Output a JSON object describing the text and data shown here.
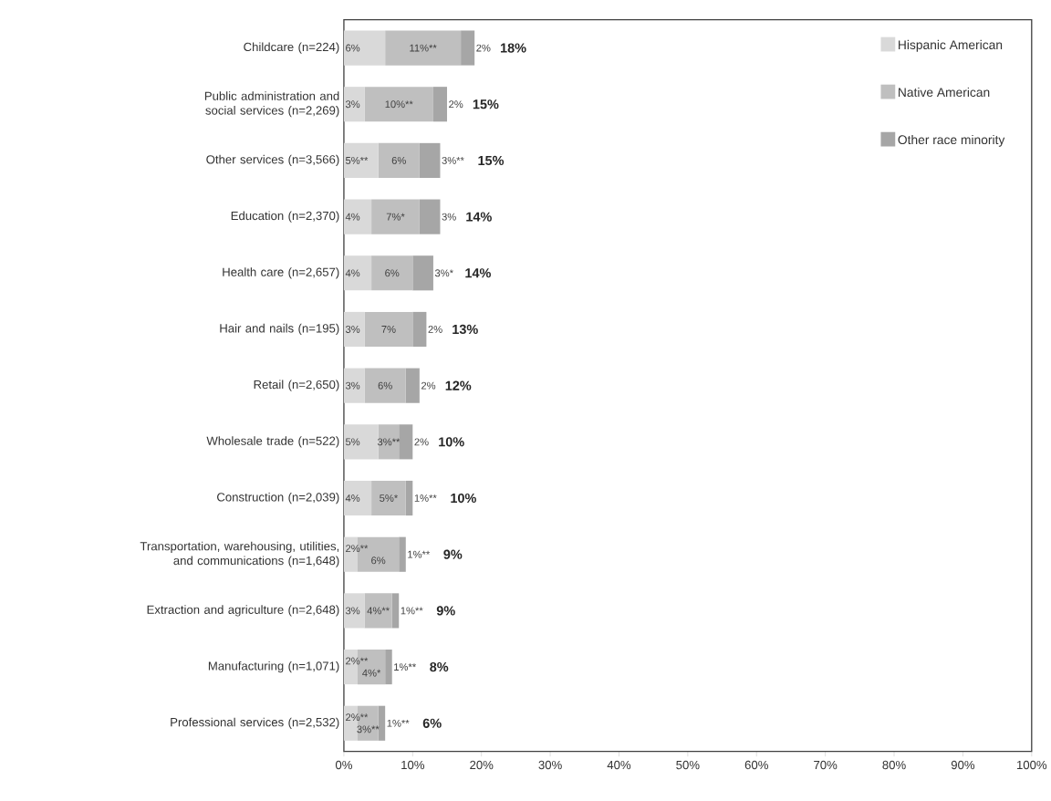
{
  "chart_data": {
    "type": "bar",
    "orientation": "horizontal",
    "stacked": true,
    "categories": [
      "Childcare (n=224)",
      "Public administration and social services (n=2,269)",
      "Other services (n=3,566)",
      "Education (n=2,370)",
      "Health care (n=2,657)",
      "Hair and nails (n=195)",
      "Retail (n=2,650)",
      "Wholesale trade (n=522)",
      "Construction (n=2,039)",
      "Transportation, warehousing, utilities, and communications (n=1,648)",
      "Extraction and agriculture (n=2,648)",
      "Manufacturing (n=1,071)",
      "Professional services (n=2,532)"
    ],
    "series": [
      {
        "name": "Hispanic American",
        "color": "#d9d9d9",
        "values": [
          6,
          3,
          5,
          4,
          4,
          3,
          3,
          5,
          4,
          2,
          3,
          2,
          2
        ],
        "value_labels": [
          "6%",
          "3%",
          "5%**",
          "4%",
          "4%",
          "3%",
          "3%",
          "5%",
          "4%",
          "2%**",
          "3%",
          "2%**",
          "2%**"
        ]
      },
      {
        "name": "Native American",
        "color": "#bfbfbf",
        "values": [
          11,
          10,
          6,
          7,
          6,
          7,
          6,
          3,
          5,
          6,
          4,
          4,
          3
        ],
        "value_labels": [
          "11%**",
          "10%**",
          "6%",
          "7%*",
          "6%",
          "7%",
          "6%",
          "3%**",
          "5%*",
          "6%",
          "4%**",
          "4%*",
          "3%**"
        ]
      },
      {
        "name": "Other race minority",
        "color": "#a6a6a6",
        "values": [
          2,
          2,
          3,
          3,
          3,
          2,
          2,
          2,
          1,
          1,
          1,
          1,
          1
        ],
        "value_labels": [
          "2%",
          "2%",
          "3%**",
          "3%",
          "3%*",
          "2%",
          "2%",
          "2%",
          "1%**",
          "1%**",
          "1%**",
          "1%**",
          "1%**"
        ]
      }
    ],
    "totals": [
      "18%",
      "15%",
      "15%",
      "14%",
      "14%",
      "13%",
      "12%",
      "10%",
      "10%",
      "9%",
      "9%",
      "8%",
      "6%"
    ],
    "xlim": [
      0,
      100
    ],
    "xticks": [
      {
        "value": 0,
        "label": "0%"
      },
      {
        "value": 10,
        "label": "10%"
      },
      {
        "value": 20,
        "label": "20%"
      },
      {
        "value": 30,
        "label": "30%"
      },
      {
        "value": 40,
        "label": "40%"
      },
      {
        "value": 50,
        "label": "50%"
      },
      {
        "value": 60,
        "label": "60%"
      },
      {
        "value": 70,
        "label": "70%"
      },
      {
        "value": 80,
        "label": "80%"
      },
      {
        "value": 90,
        "label": "90%"
      },
      {
        "value": 100,
        "label": "100%"
      }
    ],
    "legend": "top right"
  }
}
